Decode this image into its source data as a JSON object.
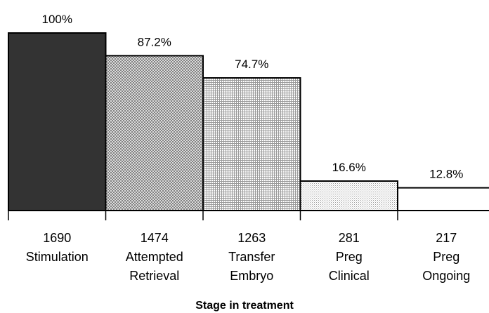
{
  "chart_data": {
    "type": "bar",
    "title": "",
    "xlabel": "Stage in treatment",
    "ylabel": "",
    "ylim": [
      0,
      100
    ],
    "grid": false,
    "legend": "none",
    "categories": [
      {
        "count": "1690",
        "line1": "Stimulation",
        "line2": ""
      },
      {
        "count": "1474",
        "line1": "Attempted",
        "line2": "Retrieval"
      },
      {
        "count": "1263",
        "line1": "Transfer",
        "line2": "Embryo"
      },
      {
        "count": "281",
        "line1": "Preg",
        "line2": "Clinical"
      },
      {
        "count": "217",
        "line1": "Preg",
        "line2": "Ongoing"
      }
    ],
    "values": [
      100,
      87.2,
      74.7,
      16.6,
      12.8
    ],
    "value_labels": [
      "100%",
      "87.2%",
      "74.7%",
      "16.6%",
      "12.8%"
    ],
    "fills": [
      "solid-dark",
      "crosshatch",
      "grid",
      "dots",
      "none"
    ],
    "colors": {
      "dark": "#333333",
      "pattern": "#888888",
      "stroke": "#000000"
    }
  }
}
